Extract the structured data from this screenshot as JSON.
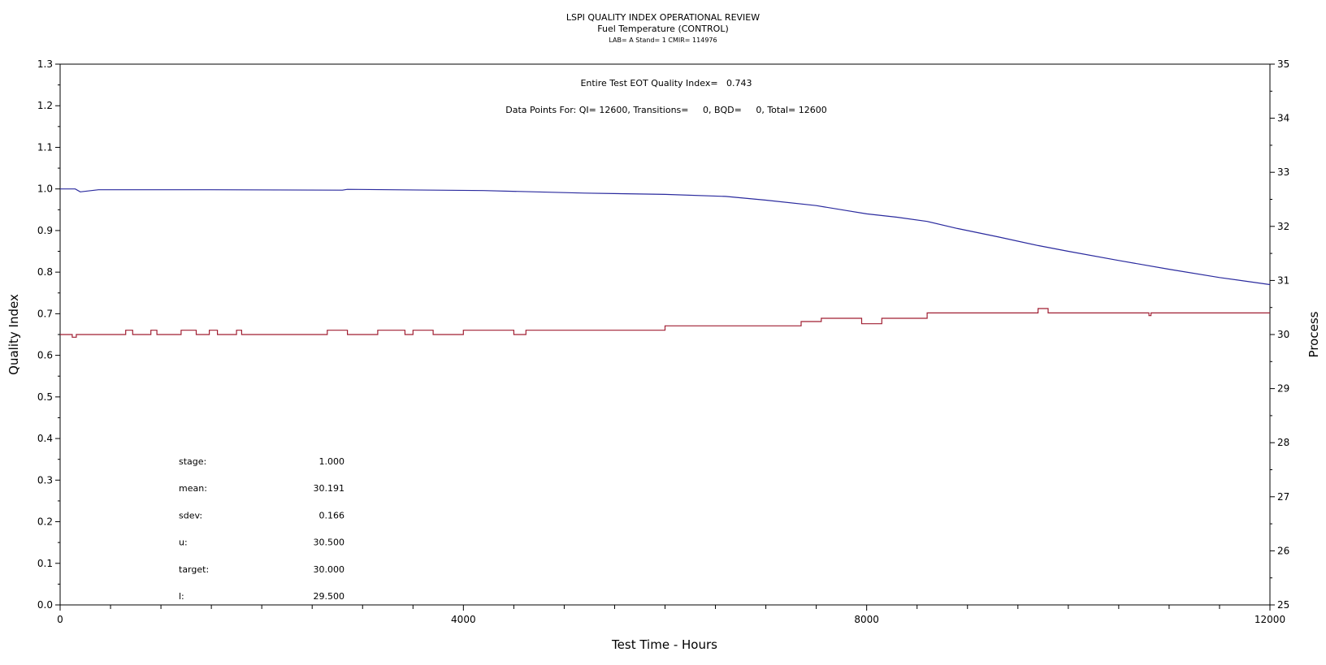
{
  "chart_data": {
    "type": "line",
    "title": "LSPI QUALITY INDEX OPERATIONAL REVIEW",
    "subtitle": "Fuel Temperature (CONTROL)",
    "subsubtitle": "LAB= A Stand= 1 CMIR= 114976",
    "xlabel": "Test Time - Hours",
    "ylabel_left": "Quality Index",
    "ylabel_right": "Process",
    "xlim": [
      0,
      12000
    ],
    "ylim_left": [
      0,
      1.3
    ],
    "ylim_right": [
      25,
      35
    ],
    "x_ticks": [
      0,
      4000,
      8000,
      12000
    ],
    "y_ticks_left": [
      "0.0",
      "0.1",
      "0.2",
      "0.3",
      "0.4",
      "0.5",
      "0.6",
      "0.7",
      "0.8",
      "0.9",
      "1.0",
      "1.1",
      "1.2",
      "1.3"
    ],
    "y_ticks_right": [
      "25",
      "26",
      "27",
      "28",
      "29",
      "30",
      "31",
      "32",
      "33",
      "34",
      "35"
    ],
    "grid": false,
    "annotations": {
      "quality_index_line": "Entire Test EOT Quality Index=   0.743",
      "data_points_line": "Data Points For: QI= 12600, Transitions=     0, BQD=     0, Total= 12600"
    },
    "stats": [
      {
        "label": "stage:",
        "value": "1.000"
      },
      {
        "label": "mean:",
        "value": "30.191"
      },
      {
        "label": "sdev:",
        "value": "0.166"
      },
      {
        "label": "u:",
        "value": "30.500"
      },
      {
        "label": "target:",
        "value": "30.000"
      },
      {
        "label": "l:",
        "value": "29.500"
      }
    ],
    "series": [
      {
        "axis": "left",
        "color": "#2a2a9e",
        "x": [
          0,
          150,
          200,
          380,
          1500,
          2800,
          2850,
          4200,
          5200,
          6000,
          6600,
          7000,
          7500,
          7800,
          8000,
          8300,
          8600,
          8900,
          9300,
          9700,
          10000,
          10500,
          11000,
          11500,
          12000
        ],
        "y": [
          1.0,
          1.0,
          0.993,
          0.998,
          0.998,
          0.997,
          0.999,
          0.996,
          0.99,
          0.987,
          0.982,
          0.973,
          0.96,
          0.948,
          0.94,
          0.932,
          0.922,
          0.905,
          0.885,
          0.864,
          0.85,
          0.828,
          0.807,
          0.787,
          0.77
        ]
      },
      {
        "axis": "right",
        "color": "#a01e32",
        "x": [
          0,
          120,
          120,
          160,
          160,
          650,
          650,
          720,
          720,
          900,
          900,
          960,
          960,
          1200,
          1200,
          1350,
          1350,
          1480,
          1480,
          1560,
          1560,
          1750,
          1750,
          1800,
          1800,
          1800,
          1800,
          2650,
          2650,
          2850,
          2850,
          3150,
          3150,
          3420,
          3420,
          3500,
          3500,
          3700,
          3700,
          4000,
          4000,
          4500,
          4500,
          4620,
          4620,
          5000,
          5000,
          6000,
          6000,
          6500,
          6500,
          6700,
          6700,
          7350,
          7350,
          7550,
          7550,
          7950,
          7950,
          8150,
          8150,
          8600,
          8600,
          9700,
          9700,
          9800,
          9800,
          10800,
          10800,
          10820,
          10820,
          12000
        ],
        "y": [
          30.0,
          30.0,
          29.95,
          29.95,
          30.0,
          30.0,
          30.08,
          30.08,
          30.0,
          30.0,
          30.08,
          30.08,
          30.0,
          30.0,
          30.08,
          30.08,
          30.0,
          30.0,
          30.08,
          30.08,
          30.0,
          30.0,
          30.08,
          30.08,
          30.0,
          30.0,
          30.0,
          30.0,
          30.08,
          30.08,
          30.0,
          30.0,
          30.08,
          30.08,
          30.0,
          30.0,
          30.08,
          30.08,
          30.0,
          30.0,
          30.08,
          30.08,
          30.0,
          30.0,
          30.08,
          30.08,
          30.08,
          30.08,
          30.16,
          30.16,
          30.16,
          30.16,
          30.16,
          30.16,
          30.24,
          30.24,
          30.3,
          30.3,
          30.2,
          30.2,
          30.3,
          30.3,
          30.4,
          30.4,
          30.48,
          30.48,
          30.4,
          30.4,
          30.35,
          30.35,
          30.4,
          30.4
        ]
      }
    ]
  }
}
